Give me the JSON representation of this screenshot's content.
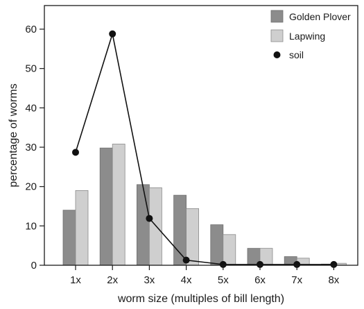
{
  "chart_data": {
    "type": "bar",
    "title": "",
    "xlabel": "worm size (multiples of bill length)",
    "ylabel": "percentage of worms",
    "categories": [
      "1x",
      "2x",
      "3x",
      "4x",
      "5x",
      "6x",
      "7x",
      "8x"
    ],
    "ylim": [
      0,
      66
    ],
    "yticks": [
      0,
      10,
      20,
      30,
      40,
      50,
      60
    ],
    "grid": false,
    "legend_position": "top-right",
    "series": [
      {
        "name": "Golden Plover",
        "kind": "bar",
        "color": "#8c8c8c",
        "values": [
          14,
          29.8,
          20.5,
          17.8,
          10.3,
          4.3,
          2.2,
          0.3
        ]
      },
      {
        "name": "Lapwing",
        "kind": "bar",
        "color": "#cfcfcf",
        "values": [
          19,
          30.8,
          19.7,
          14.4,
          7.8,
          4.3,
          1.8,
          0.5
        ]
      },
      {
        "name": "soil",
        "kind": "line-marker",
        "color": "#111111",
        "values": [
          28.7,
          58.8,
          11.9,
          1.3,
          0.2,
          0.2,
          0.2,
          0.2
        ]
      }
    ]
  }
}
